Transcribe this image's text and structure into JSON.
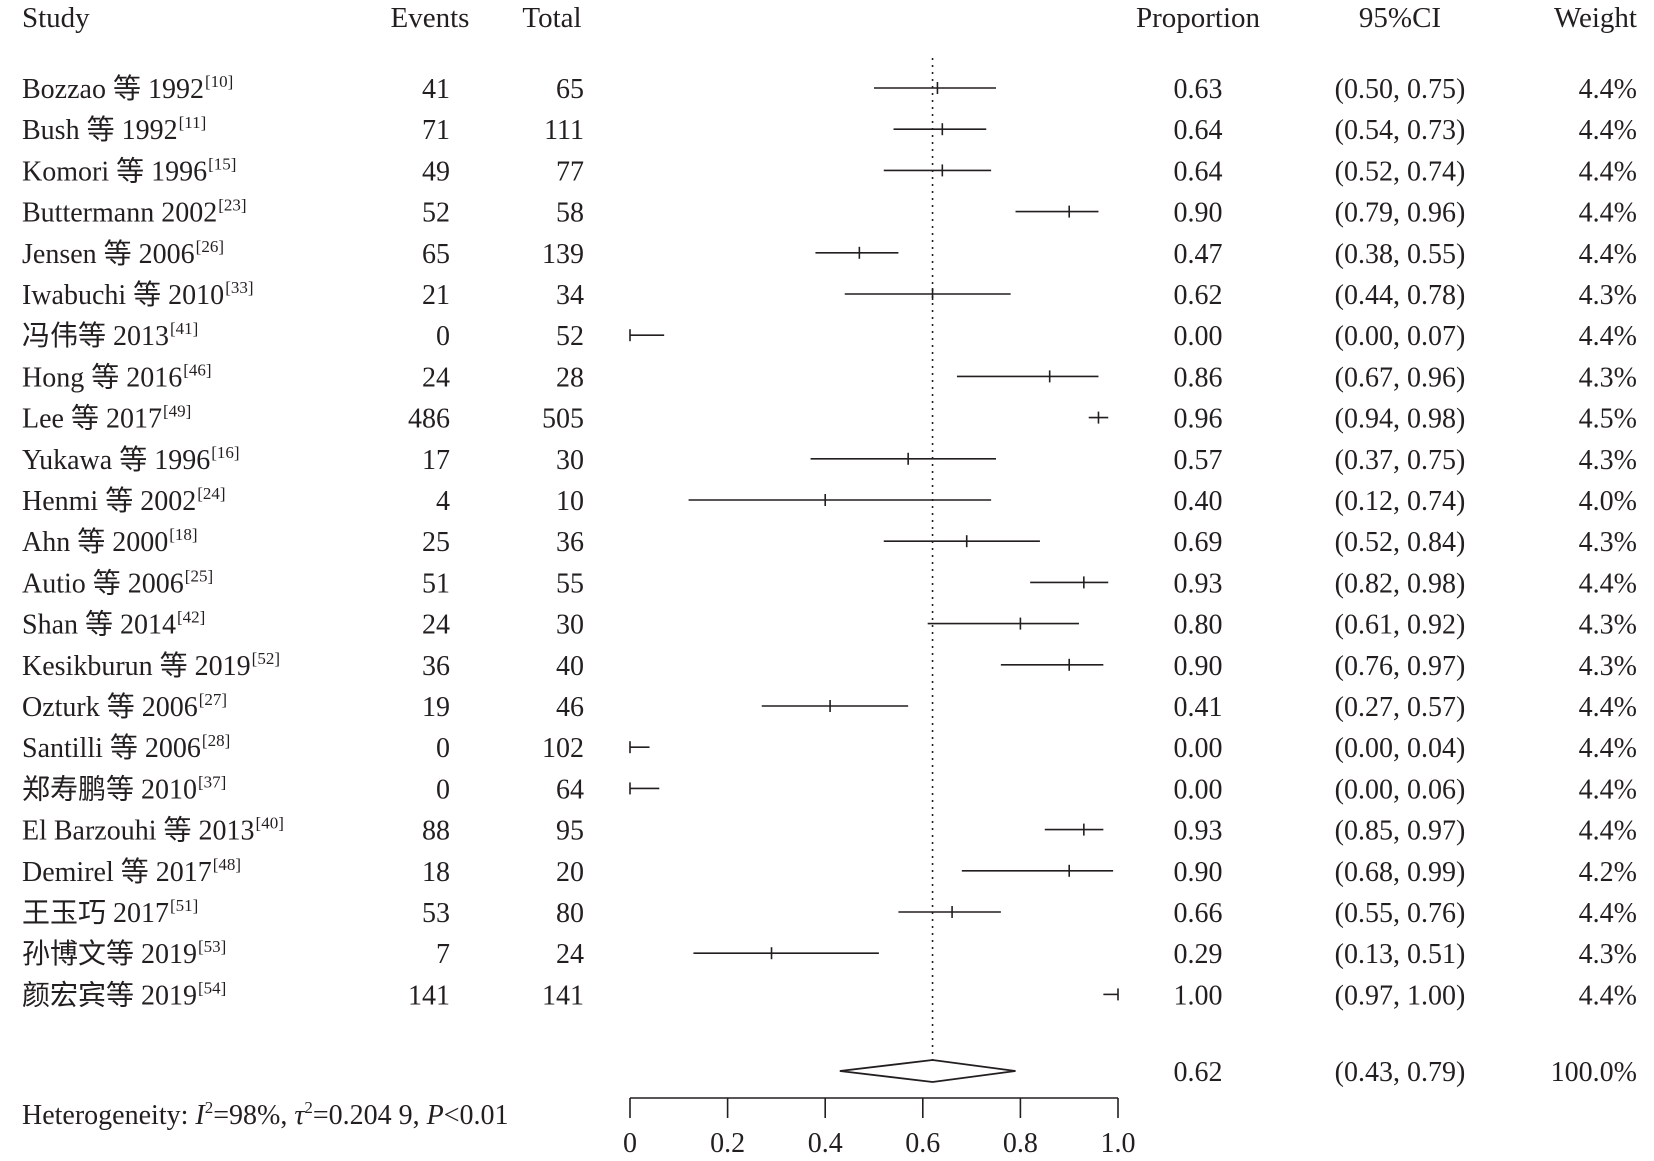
{
  "chart_data": {
    "type": "forest",
    "headers": {
      "study": "Study",
      "events": "Events",
      "total": "Total",
      "proportion": "Proportion",
      "ci": "95%CI",
      "weight": "Weight"
    },
    "studies": [
      {
        "name": "Bozzao 等 1992",
        "ref": "[10]",
        "events": "41",
        "total": "65",
        "proportion": 0.63,
        "ci_low": 0.5,
        "ci_high": 0.75,
        "proportion_text": "0.63",
        "ci_text": "(0.50, 0.75)",
        "weight": "4.4%"
      },
      {
        "name": "Bush 等 1992 ",
        "ref": "[11]",
        "events": "71",
        "total": "111",
        "proportion": 0.64,
        "ci_low": 0.54,
        "ci_high": 0.73,
        "proportion_text": "0.64",
        "ci_text": "(0.54, 0.73)",
        "weight": "4.4%"
      },
      {
        "name": "Komori 等 1996",
        "ref": "[15]",
        "events": "49",
        "total": "77",
        "proportion": 0.64,
        "ci_low": 0.52,
        "ci_high": 0.74,
        "proportion_text": "0.64",
        "ci_text": "(0.52, 0.74)",
        "weight": "4.4%"
      },
      {
        "name": "Buttermann 2002",
        "ref": "[23]",
        "events": "52",
        "total": "58",
        "proportion": 0.9,
        "ci_low": 0.79,
        "ci_high": 0.96,
        "proportion_text": "0.90",
        "ci_text": "(0.79, 0.96)",
        "weight": "4.4%"
      },
      {
        "name": "Jensen 等 2006",
        "ref": "[26]",
        "events": "65",
        "total": "139",
        "proportion": 0.47,
        "ci_low": 0.38,
        "ci_high": 0.55,
        "proportion_text": "0.47",
        "ci_text": "(0.38, 0.55)",
        "weight": "4.4%"
      },
      {
        "name": "Iwabuchi 等 2010",
        "ref": "[33]",
        "events": "21",
        "total": "34",
        "proportion": 0.62,
        "ci_low": 0.44,
        "ci_high": 0.78,
        "proportion_text": "0.62",
        "ci_text": "(0.44, 0.78)",
        "weight": "4.3%"
      },
      {
        "name": "冯伟等 2013",
        "ref": "[41]",
        "events": "0",
        "total": "52",
        "proportion": 0.0,
        "ci_low": 0.0,
        "ci_high": 0.07,
        "proportion_text": "0.00",
        "ci_text": "(0.00, 0.07)",
        "weight": "4.4%"
      },
      {
        "name": "Hong 等 2016",
        "ref": "[46]",
        "events": "24",
        "total": "28",
        "proportion": 0.86,
        "ci_low": 0.67,
        "ci_high": 0.96,
        "proportion_text": "0.86",
        "ci_text": "(0.67, 0.96)",
        "weight": "4.3%"
      },
      {
        "name": "Lee 等 2017",
        "ref": "[49]",
        "events": "486",
        "total": "505",
        "proportion": 0.96,
        "ci_low": 0.94,
        "ci_high": 0.98,
        "proportion_text": "0.96",
        "ci_text": "(0.94, 0.98)",
        "weight": "4.5%"
      },
      {
        "name": "Yukawa 等 1996",
        "ref": "[16]",
        "events": "17",
        "total": "30",
        "proportion": 0.57,
        "ci_low": 0.37,
        "ci_high": 0.75,
        "proportion_text": "0.57",
        "ci_text": "(0.37, 0.75)",
        "weight": "4.3%"
      },
      {
        "name": "Henmi 等 2002",
        "ref": "[24]",
        "events": "4",
        "total": "10",
        "proportion": 0.4,
        "ci_low": 0.12,
        "ci_high": 0.74,
        "proportion_text": "0.40",
        "ci_text": "(0.12, 0.74)",
        "weight": "4.0%"
      },
      {
        "name": "Ahn 等 2000",
        "ref": "[18]",
        "events": "25",
        "total": "36",
        "proportion": 0.69,
        "ci_low": 0.52,
        "ci_high": 0.84,
        "proportion_text": "0.69",
        "ci_text": "(0.52, 0.84)",
        "weight": "4.3%"
      },
      {
        "name": "Autio 等 2006",
        "ref": "[25]",
        "events": "51",
        "total": "55",
        "proportion": 0.93,
        "ci_low": 0.82,
        "ci_high": 0.98,
        "proportion_text": "0.93",
        "ci_text": "(0.82, 0.98)",
        "weight": "4.4%"
      },
      {
        "name": "Shan 等 2014",
        "ref": "[42]",
        "events": "24",
        "total": "30",
        "proportion": 0.8,
        "ci_low": 0.61,
        "ci_high": 0.92,
        "proportion_text": "0.80",
        "ci_text": "(0.61, 0.92)",
        "weight": "4.3%"
      },
      {
        "name": "Kesikburun 等 2019",
        "ref": "[52]",
        "events": "36",
        "total": "40",
        "proportion": 0.9,
        "ci_low": 0.76,
        "ci_high": 0.97,
        "proportion_text": "0.90",
        "ci_text": "(0.76, 0.97)",
        "weight": "4.3%"
      },
      {
        "name": "Ozturk 等 2006",
        "ref": "[27]",
        "events": "19",
        "total": "46",
        "proportion": 0.41,
        "ci_low": 0.27,
        "ci_high": 0.57,
        "proportion_text": "0.41",
        "ci_text": "(0.27, 0.57)",
        "weight": "4.4%"
      },
      {
        "name": "Santilli 等 2006",
        "ref": "[28]",
        "events": "0",
        "total": "102",
        "proportion": 0.0,
        "ci_low": 0.0,
        "ci_high": 0.04,
        "proportion_text": "0.00",
        "ci_text": "(0.00, 0.04)",
        "weight": "4.4%"
      },
      {
        "name": "郑寿鹏等 2010",
        "ref": "[37]",
        "events": "0",
        "total": "64",
        "proportion": 0.0,
        "ci_low": 0.0,
        "ci_high": 0.06,
        "proportion_text": "0.00",
        "ci_text": "(0.00, 0.06)",
        "weight": "4.4%"
      },
      {
        "name": "El Barzouhi 等 2013",
        "ref": "[40]",
        "events": "88",
        "total": "95",
        "proportion": 0.93,
        "ci_low": 0.85,
        "ci_high": 0.97,
        "proportion_text": "0.93",
        "ci_text": "(0.85, 0.97)",
        "weight": "4.4%"
      },
      {
        "name": "Demirel 等 2017",
        "ref": "[48]",
        "events": "18",
        "total": "20",
        "proportion": 0.9,
        "ci_low": 0.68,
        "ci_high": 0.99,
        "proportion_text": "0.90",
        "ci_text": "(0.68, 0.99)",
        "weight": "4.2%"
      },
      {
        "name": "王玉巧 2017",
        "ref": "[51]",
        "events": "53",
        "total": "80",
        "proportion": 0.66,
        "ci_low": 0.55,
        "ci_high": 0.76,
        "proportion_text": "0.66",
        "ci_text": "(0.55, 0.76)",
        "weight": "4.4%"
      },
      {
        "name": "孙博文等 2019",
        "ref": "[53]",
        "events": "7",
        "total": "24",
        "proportion": 0.29,
        "ci_low": 0.13,
        "ci_high": 0.51,
        "proportion_text": "0.29",
        "ci_text": "(0.13, 0.51)",
        "weight": "4.3%"
      },
      {
        "name": "颜宏宾等 2019",
        "ref": "[54]",
        "events": "141",
        "total": "141",
        "proportion": 1.0,
        "ci_low": 0.97,
        "ci_high": 1.0,
        "proportion_text": "1.00",
        "ci_text": "(0.97, 1.00)",
        "weight": "4.4%"
      }
    ],
    "summary": {
      "proportion": 0.62,
      "ci_low": 0.43,
      "ci_high": 0.79,
      "proportion_text": "0.62",
      "ci_text": "(0.43, 0.79)",
      "weight": "100.0%"
    },
    "reference_line": 0.62,
    "heterogeneity": {
      "prefix": "Heterogeneity: ",
      "i2_symbol": "I",
      "i2_value": "=98%, ",
      "tau_symbol": "τ",
      "tau_value": "=0.204 9, ",
      "p_symbol": "P",
      "p_value": "<0.01"
    },
    "x_axis": {
      "min": 0,
      "max": 1,
      "ticks": [
        0,
        0.2,
        0.4,
        0.6,
        0.8,
        1.0
      ],
      "tick_labels": [
        "0",
        "0.2",
        "0.4",
        "0.6",
        "0.8",
        "1.0"
      ]
    }
  }
}
